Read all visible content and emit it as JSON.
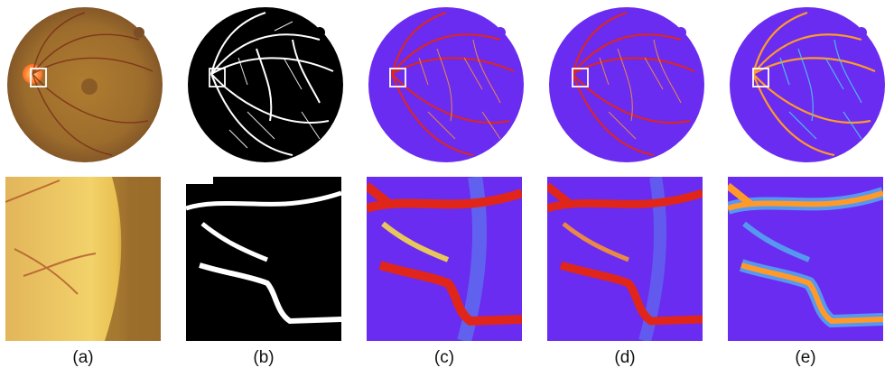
{
  "figure": {
    "panels": [
      {
        "id": "a",
        "label": "(a)",
        "content": "fundus image"
      },
      {
        "id": "b",
        "label": "(b)",
        "content": "ground truth vessel mask"
      },
      {
        "id": "c",
        "label": "(c)",
        "content": "probability map"
      },
      {
        "id": "d",
        "label": "(d)",
        "content": "probability map"
      },
      {
        "id": "e",
        "label": "(e)",
        "content": "probability map"
      }
    ]
  },
  "colors": {
    "background_map": "#6a2cf0",
    "vessel_hot": "#e0261a",
    "vessel_warm": "#ff9a2a",
    "vessel_mid": "#f5d84a",
    "vessel_cool": "#4fc6f0",
    "fundus_outer": "#8a5a2c",
    "fundus_inner": "#a9782f",
    "optic_disc": "#ff8a30",
    "mask_bg": "#000000",
    "mask_vessel": "#ffffff",
    "highlight_box": "#ffffff"
  }
}
